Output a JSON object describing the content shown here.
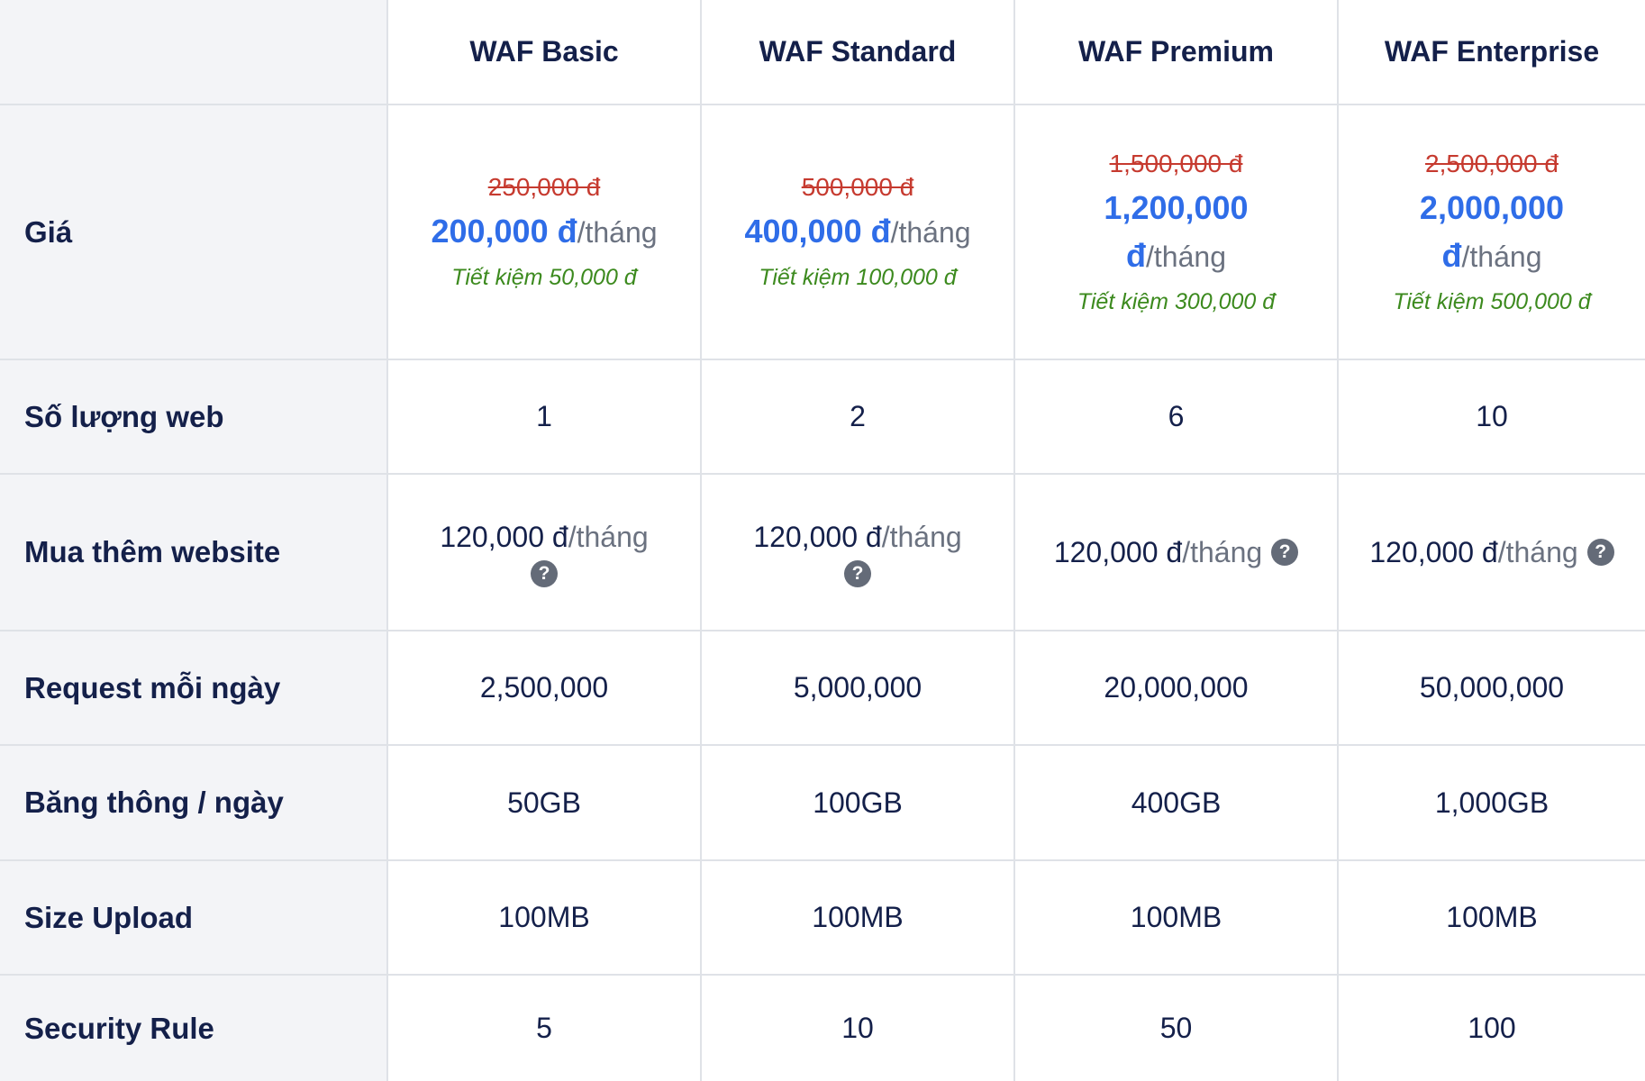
{
  "plans": [
    {
      "name": "WAF Basic"
    },
    {
      "name": "WAF Standard"
    },
    {
      "name": "WAF Premium"
    },
    {
      "name": "WAF Enterprise"
    }
  ],
  "rows": {
    "price": {
      "label": "Giá"
    },
    "websites": {
      "label": "Số lượng web",
      "values": [
        "1",
        "2",
        "6",
        "10"
      ]
    },
    "addon": {
      "label": "Mua thêm website",
      "price": "120,000 đ",
      "unit": "/tháng"
    },
    "requests": {
      "label": "Request mỗi ngày",
      "values": [
        "2,500,000",
        "5,000,000",
        "20,000,000",
        "50,000,000"
      ]
    },
    "bandwidth": {
      "label": "Băng thông / ngày",
      "values": [
        "50GB",
        "100GB",
        "400GB",
        "1,000GB"
      ]
    },
    "upload": {
      "label": "Size Upload",
      "values": [
        "100MB",
        "100MB",
        "100MB",
        "100MB"
      ]
    },
    "rules": {
      "label": "Security Rule",
      "values": [
        "5",
        "10",
        "50",
        "100"
      ]
    }
  },
  "prices": [
    {
      "old": "250,000 đ",
      "new": "200,000 đ",
      "unit": "/tháng",
      "saving": "Tiết kiệm 50,000 đ"
    },
    {
      "old": "500,000 đ",
      "new": "400,000 đ",
      "unit": "/tháng",
      "saving": "Tiết kiệm 100,000 đ"
    },
    {
      "old": "1,500,000 đ",
      "new_amount": "1,200,000",
      "new_currency": "đ",
      "unit": "/tháng",
      "saving": "Tiết kiệm 300,000 đ"
    },
    {
      "old": "2,500,000 đ",
      "new_amount": "2,000,000",
      "new_currency": "đ",
      "unit": "/tháng",
      "saving": "Tiết kiệm 500,000 đ"
    }
  ],
  "help_icon_glyph": "?",
  "colors": {
    "heading": "#14204a",
    "old_price": "#c63a2f",
    "new_price": "#2f6de8",
    "saving": "#3c8a1e",
    "label_bg": "#f3f4f7",
    "help_icon": "#646b78"
  }
}
